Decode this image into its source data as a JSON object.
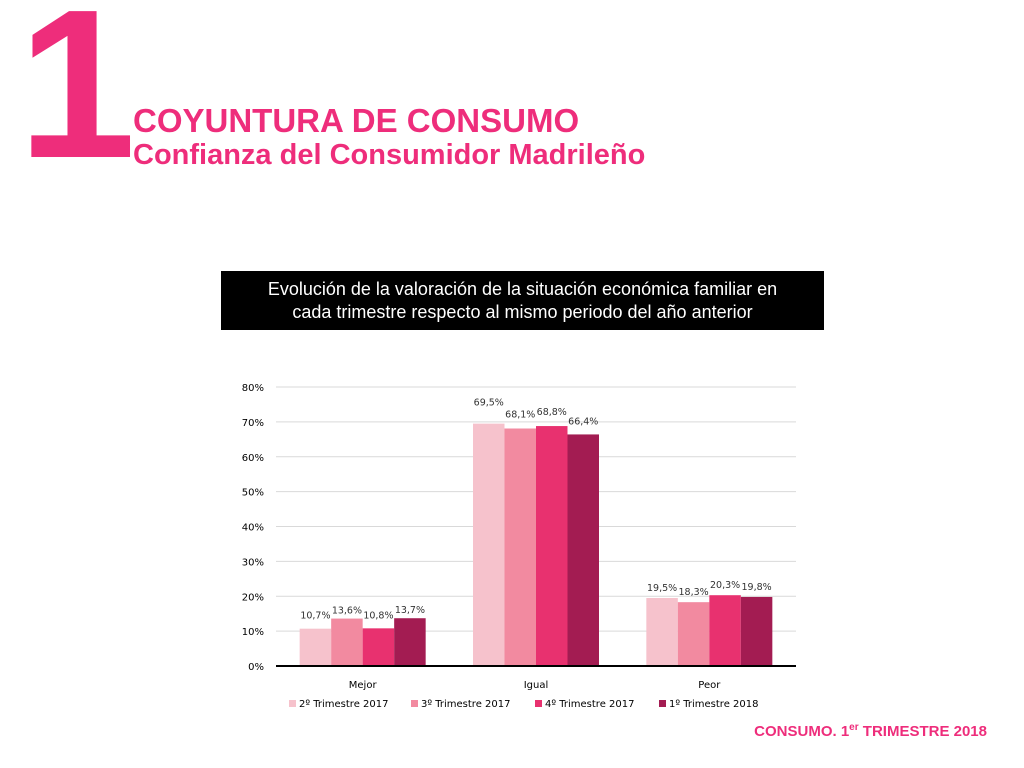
{
  "header": {
    "number": "1",
    "title": "COYUNTURA DE CONSUMO",
    "subtitle": "Confianza del Consumidor Madrileño"
  },
  "caption": {
    "line1": "Evolución de la valoración de la situación económica familiar en",
    "line2": "cada trimestre respecto al mismo periodo del año anterior"
  },
  "footer": {
    "prefix": "CONSUMO. 1",
    "superscript": "er",
    "suffix": " TRIMESTRE 2018"
  },
  "colors": {
    "brand": "#ee2d7b",
    "grid": "#d9d9d9",
    "axis": "#000000"
  },
  "chart_data": {
    "type": "bar",
    "categories": [
      "Mejor",
      "Igual",
      "Peor"
    ],
    "series": [
      {
        "name": "2º Trimestre 2017",
        "color": "#f6c2cc",
        "values": [
          10.7,
          69.5,
          19.5
        ],
        "labels": [
          "10,7%",
          "69,5%",
          "19,5%"
        ]
      },
      {
        "name": "3º Trimestre 2017",
        "color": "#f28aa0",
        "values": [
          13.6,
          68.1,
          18.3
        ],
        "labels": [
          "13,6%",
          "68,1%",
          "18,3%"
        ]
      },
      {
        "name": "4º Trimestre 2017",
        "color": "#e8316f",
        "values": [
          10.8,
          68.8,
          20.3
        ],
        "labels": [
          "10,8%",
          "68,8%",
          "20,3%"
        ]
      },
      {
        "name": "1º Trimestre 2018",
        "color": "#a31c52",
        "values": [
          13.7,
          66.4,
          19.8
        ],
        "labels": [
          "13,7%",
          "66,4%",
          "19,8%"
        ]
      }
    ],
    "ylim": [
      0,
      80
    ],
    "yticks": [
      "0%",
      "10%",
      "20%",
      "30%",
      "40%",
      "50%",
      "60%",
      "70%",
      "80%"
    ],
    "grid": true,
    "legend": "bottom",
    "title": "",
    "xlabel": "",
    "ylabel": ""
  }
}
